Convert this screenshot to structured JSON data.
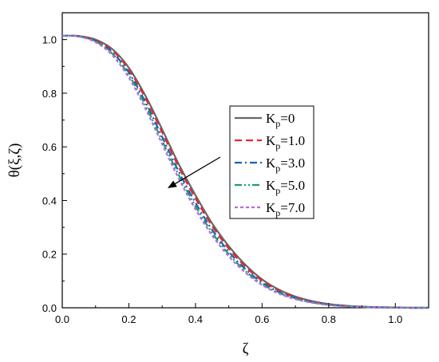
{
  "chart_data": {
    "type": "line",
    "title": "",
    "xlabel": "ζ",
    "ylabel": "θ(ξ,ζ)",
    "xlim": [
      0.0,
      1.1
    ],
    "ylim": [
      0.0,
      1.1
    ],
    "x_ticks": [
      "0.0",
      "0.2",
      "0.4",
      "0.6",
      "0.8",
      "1.0"
    ],
    "y_ticks": [
      "0.0",
      "0.2",
      "0.4",
      "0.6",
      "0.8",
      "1.0"
    ],
    "grid": false,
    "legend_position": "center-right",
    "annotation": "arrow pointing down-left indicating increasing Kp",
    "series": [
      {
        "name": "K",
        "name_sub": "p",
        "name_suffix": "=0",
        "color": "#666666",
        "style": "solid",
        "x": [
          0.0,
          0.05,
          0.1,
          0.15,
          0.2,
          0.25,
          0.3,
          0.35,
          0.4,
          0.45,
          0.5,
          0.55,
          0.6,
          0.65,
          0.7,
          0.75,
          0.8,
          0.85,
          0.9,
          0.95,
          1.0,
          1.05,
          1.1
        ],
        "y": [
          1.015,
          1.013,
          1.0,
          0.965,
          0.895,
          0.79,
          0.665,
          0.535,
          0.42,
          0.315,
          0.23,
          0.16,
          0.106,
          0.068,
          0.042,
          0.025,
          0.014,
          0.008,
          0.004,
          0.002,
          0.001,
          0.0,
          0.0
        ]
      },
      {
        "name": "K",
        "name_sub": "p",
        "name_suffix": "=1.0",
        "color": "#e8262b",
        "style": "dash",
        "x": [
          0.0,
          0.05,
          0.1,
          0.15,
          0.2,
          0.25,
          0.3,
          0.35,
          0.4,
          0.45,
          0.5,
          0.55,
          0.6,
          0.65,
          0.7,
          0.75,
          0.8,
          0.85,
          0.9,
          0.95,
          1.0,
          1.05,
          1.1
        ],
        "y": [
          1.015,
          1.013,
          0.998,
          0.96,
          0.888,
          0.781,
          0.654,
          0.524,
          0.408,
          0.305,
          0.221,
          0.153,
          0.101,
          0.064,
          0.039,
          0.023,
          0.013,
          0.007,
          0.004,
          0.002,
          0.001,
          0.0,
          0.0
        ]
      },
      {
        "name": "K",
        "name_sub": "p",
        "name_suffix": "=3.0",
        "color": "#1b5fb8",
        "style": "dashdot",
        "x": [
          0.0,
          0.05,
          0.1,
          0.15,
          0.2,
          0.25,
          0.3,
          0.35,
          0.4,
          0.45,
          0.5,
          0.55,
          0.6,
          0.65,
          0.7,
          0.75,
          0.8,
          0.85,
          0.9,
          0.95,
          1.0,
          1.05,
          1.1
        ],
        "y": [
          1.015,
          1.012,
          0.995,
          0.953,
          0.877,
          0.766,
          0.637,
          0.507,
          0.392,
          0.291,
          0.209,
          0.144,
          0.094,
          0.059,
          0.036,
          0.021,
          0.012,
          0.006,
          0.003,
          0.002,
          0.001,
          0.0,
          0.0
        ]
      },
      {
        "name": "K",
        "name_sub": "p",
        "name_suffix": "=5.0",
        "color": "#1a9e6e",
        "style": "dashdotdot",
        "x": [
          0.0,
          0.05,
          0.1,
          0.15,
          0.2,
          0.25,
          0.3,
          0.35,
          0.4,
          0.45,
          0.5,
          0.55,
          0.6,
          0.65,
          0.7,
          0.75,
          0.8,
          0.85,
          0.9,
          0.95,
          1.0,
          1.05,
          1.1
        ],
        "y": [
          1.015,
          1.012,
          0.993,
          0.948,
          0.868,
          0.754,
          0.623,
          0.494,
          0.379,
          0.28,
          0.2,
          0.137,
          0.089,
          0.056,
          0.034,
          0.02,
          0.011,
          0.006,
          0.003,
          0.001,
          0.001,
          0.0,
          0.0
        ]
      },
      {
        "name": "K",
        "name_sub": "p",
        "name_suffix": "=7.0",
        "color": "#b36be0",
        "style": "shortdash",
        "x": [
          0.0,
          0.05,
          0.1,
          0.15,
          0.2,
          0.25,
          0.3,
          0.35,
          0.4,
          0.45,
          0.5,
          0.55,
          0.6,
          0.65,
          0.7,
          0.75,
          0.8,
          0.85,
          0.9,
          0.95,
          1.0,
          1.05,
          1.1
        ],
        "y": [
          1.015,
          1.011,
          0.99,
          0.942,
          0.858,
          0.742,
          0.61,
          0.481,
          0.367,
          0.27,
          0.192,
          0.131,
          0.085,
          0.053,
          0.032,
          0.019,
          0.01,
          0.005,
          0.003,
          0.001,
          0.0,
          0.0,
          0.0
        ]
      }
    ]
  }
}
